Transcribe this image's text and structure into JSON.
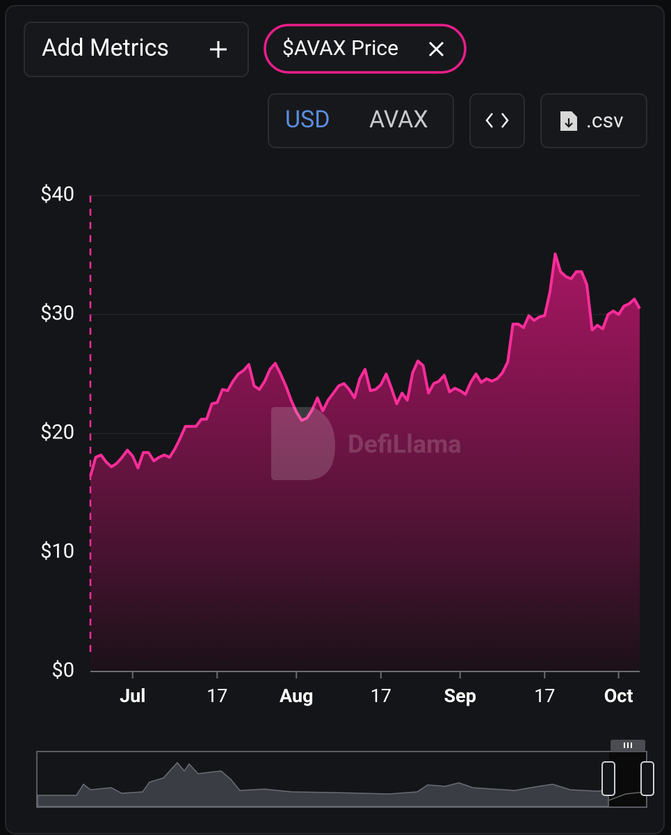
{
  "controls": {
    "add_metrics": "Add Metrics",
    "metric_chip": "$AVAX Price",
    "denominations": [
      "USD",
      "AVAX"
    ],
    "csv": ".csv"
  },
  "chart_data": {
    "type": "area",
    "watermark": "DefiLlama",
    "x": [
      "06-23",
      "06-24",
      "06-25",
      "06-26",
      "06-27",
      "06-28",
      "06-29",
      "06-30",
      "07-01",
      "07-02",
      "07-03",
      "07-04",
      "07-05",
      "07-06",
      "07-07",
      "07-08",
      "07-09",
      "07-10",
      "07-11",
      "07-12",
      "07-13",
      "07-14",
      "07-15",
      "07-16",
      "07-17",
      "07-18",
      "07-19",
      "07-20",
      "07-21",
      "07-22",
      "07-23",
      "07-24",
      "07-25",
      "07-26",
      "07-27",
      "07-28",
      "07-29",
      "07-30",
      "07-31",
      "08-01",
      "08-02",
      "08-03",
      "08-04",
      "08-05",
      "08-06",
      "08-07",
      "08-08",
      "08-09",
      "08-10",
      "08-11",
      "08-12",
      "08-13",
      "08-14",
      "08-15",
      "08-16",
      "08-17",
      "08-18",
      "08-19",
      "08-20",
      "08-21",
      "08-22",
      "08-23",
      "08-24",
      "08-25",
      "08-26",
      "08-27",
      "08-28",
      "08-29",
      "08-30",
      "08-31",
      "09-01",
      "09-02",
      "09-03",
      "09-04",
      "09-05",
      "09-06",
      "09-07",
      "09-08",
      "09-09",
      "09-10",
      "09-11",
      "09-12",
      "09-13",
      "09-14",
      "09-15",
      "09-16",
      "09-17",
      "09-18",
      "09-19",
      "09-20",
      "09-21",
      "09-22",
      "09-23",
      "09-24",
      "09-25",
      "09-26",
      "09-27",
      "09-28",
      "09-29",
      "09-30",
      "10-01",
      "10-02",
      "10-03",
      "10-04",
      "10-05"
    ],
    "series": [
      {
        "name": "$AVAX Price",
        "color": "#ff2d9a",
        "values": [
          16.4,
          18.0,
          18.2,
          17.6,
          17.2,
          17.5,
          18.0,
          18.6,
          18.1,
          17.1,
          18.4,
          18.4,
          17.7,
          18.0,
          18.2,
          18.0,
          18.7,
          19.6,
          20.6,
          20.6,
          20.6,
          21.2,
          21.2,
          22.5,
          22.6,
          23.7,
          23.6,
          24.4,
          25.0,
          25.3,
          25.8,
          24.0,
          23.7,
          24.4,
          25.4,
          25.9,
          25.0,
          24.0,
          22.8,
          21.8,
          21.1,
          21.3,
          22.0,
          23.0,
          21.9,
          22.8,
          23.4,
          24.0,
          24.2,
          23.7,
          23.0,
          24.6,
          25.4,
          23.6,
          23.7,
          24.1,
          25.0,
          23.8,
          22.5,
          23.4,
          22.8,
          25.1,
          26.1,
          25.7,
          23.4,
          24.2,
          24.4,
          24.9,
          23.5,
          23.8,
          23.6,
          23.3,
          24.3,
          25.0,
          24.3,
          24.6,
          24.4,
          24.6,
          25.1,
          26.0,
          29.2,
          29.2,
          28.9,
          29.9,
          29.5,
          29.8,
          29.9,
          31.9,
          35.1,
          33.6,
          33.2,
          33.0,
          33.6,
          33.6,
          32.5,
          28.7,
          29.1,
          28.8,
          30.0,
          30.3,
          30.0,
          30.7,
          30.9,
          31.3,
          30.5
        ]
      }
    ],
    "xlim": [
      "06-23",
      "10-05"
    ],
    "xticks": [
      {
        "value": "07-01",
        "label": "Jul"
      },
      {
        "value": "07-17",
        "label": "17"
      },
      {
        "value": "08-01",
        "label": "Aug"
      },
      {
        "value": "08-17",
        "label": "17"
      },
      {
        "value": "09-01",
        "label": "Sep"
      },
      {
        "value": "09-17",
        "label": "17"
      },
      {
        "value": "10-01",
        "label": "Oct"
      }
    ],
    "ylim": [
      0,
      40
    ],
    "yticks": [
      {
        "value": 0,
        "label": "$0"
      },
      {
        "value": 10,
        "label": "$10"
      },
      {
        "value": 20,
        "label": "$20"
      },
      {
        "value": 30,
        "label": "$30"
      },
      {
        "value": 40,
        "label": "$40"
      }
    ],
    "grid": true
  }
}
